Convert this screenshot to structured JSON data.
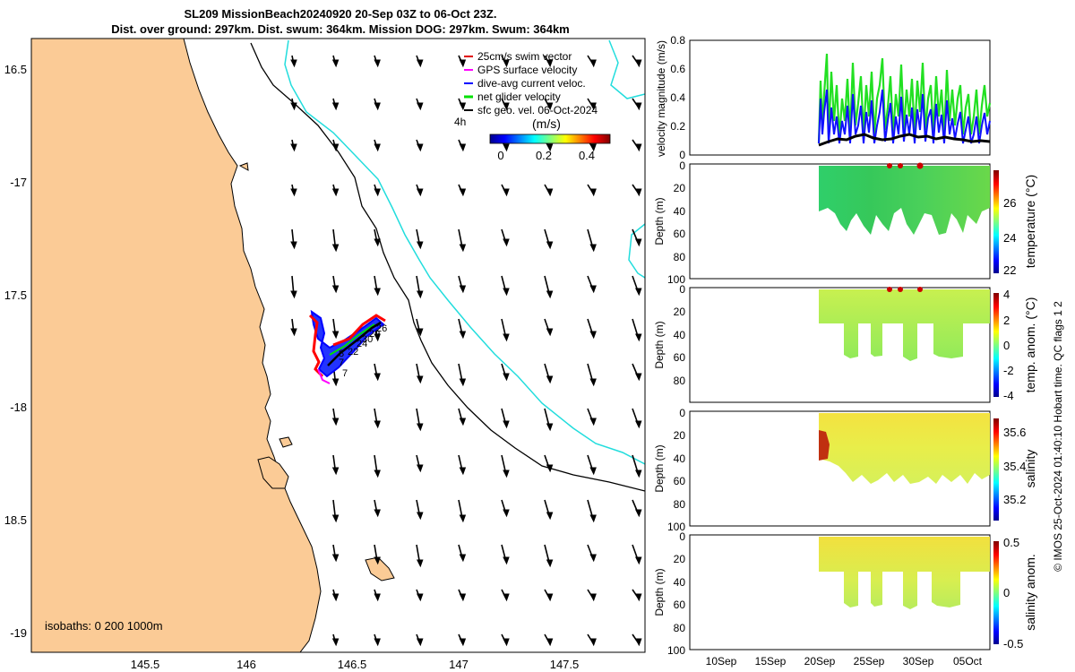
{
  "title": {
    "line1": "SL209 MissionBeach20240920 20-Sep 03Z to 06-Oct 23Z.",
    "line2": "Dist. over ground: 297km. Dist. swum: 364km. Mission DOG: 297km. Swum: 364km"
  },
  "map": {
    "lat_ticks": [
      "16.5",
      "-17",
      "17.5",
      "-18",
      "18.5",
      "-19"
    ],
    "lon_ticks": [
      "145.5",
      "146",
      "146.5",
      "147",
      "147.5"
    ],
    "isobaths_label": "isobaths: 0   200  1000m",
    "legend": {
      "items": [
        {
          "label": "25cm/s swim vector",
          "color": "#e00000"
        },
        {
          "label": "GPS surface velocity",
          "color": "#ff00ff"
        },
        {
          "label": "dive-avg current veloc.",
          "color": "#0000ff"
        },
        {
          "label": "net glider velocity",
          "color": "#00e000"
        },
        {
          "label": "sfc geo. vel. 06-Oct-2024",
          "color": "#000000"
        }
      ],
      "time_marker": "4h",
      "colorbar_label": "(m/s)",
      "colorbar_ticks": [
        "0",
        "0.2",
        "0.4"
      ]
    },
    "track_labels": [
      "26",
      "29",
      "30",
      "24",
      "22",
      "7",
      "8",
      "7"
    ],
    "colors": {
      "land": "#fbcb96",
      "isobath_200": "#000000",
      "isobath_1000": "#22dddd"
    }
  },
  "panels": {
    "velocity": {
      "ylabel": "velocity magnitude (m/s)",
      "yticks": [
        "0.8",
        "0.6",
        "0.4",
        "0.2",
        "0"
      ]
    },
    "temperature": {
      "ylabel": "Depth (m)",
      "yticks": [
        "0",
        "20",
        "40",
        "60",
        "80",
        "100"
      ],
      "cbar_label": "temperature (°C)",
      "cbar_ticks": [
        "26",
        "24",
        "22"
      ]
    },
    "temp_anom": {
      "ylabel": "Depth (m)",
      "yticks": [
        "0",
        "20",
        "40",
        "60",
        "80"
      ],
      "cbar_label": "temp. anom. (°C)",
      "cbar_ticks": [
        "4",
        "2",
        "0",
        "-2",
        "-4"
      ]
    },
    "salinity": {
      "ylabel": "Depth (m)",
      "yticks": [
        "0",
        "20",
        "40",
        "60",
        "80",
        "100"
      ],
      "cbar_label": "salinity",
      "cbar_ticks": [
        "35.6",
        "35.4",
        "35.2"
      ]
    },
    "salinity_anom": {
      "ylabel": "Depth (m)",
      "yticks": [
        "0",
        "20",
        "40",
        "60",
        "80",
        "100"
      ],
      "cbar_label": "salinity anom.",
      "cbar_ticks": [
        "0.5",
        "0",
        "-0.5"
      ]
    },
    "xticks": [
      "10Sep",
      "15Sep",
      "20Sep",
      "25Sep",
      "30Sep",
      "05Oct"
    ]
  },
  "footer": "© IMOS 25-Oct-2024 01:40:10 Hobart time. QC flags 1  2"
}
